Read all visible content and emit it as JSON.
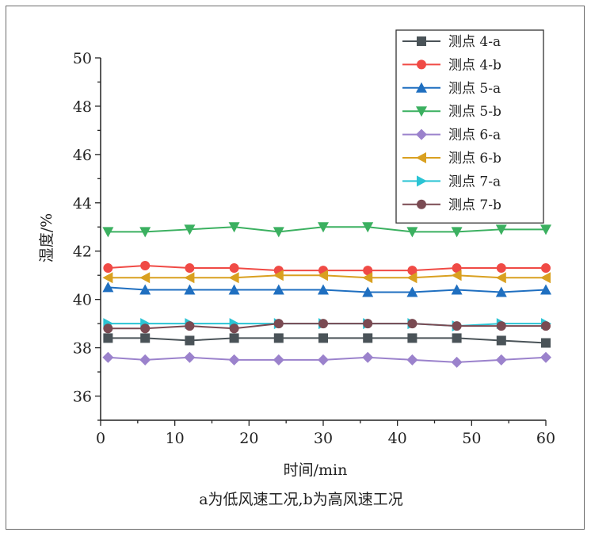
{
  "caption": "a为低风速工况,b为高风速工况",
  "colors": {
    "axis": "#222222",
    "frame": "#6b6b6b"
  },
  "chart_data": {
    "type": "line",
    "xlabel": "时间/min",
    "ylabel": "湿度/%",
    "xlim": [
      0,
      60
    ],
    "ylim": [
      35,
      50
    ],
    "xticks": [
      0,
      10,
      20,
      30,
      40,
      50,
      60
    ],
    "yticks": [
      36,
      38,
      40,
      42,
      44,
      46,
      48,
      50
    ],
    "grid": false,
    "legend_position": "top-right",
    "x": [
      1,
      6,
      12,
      18,
      24,
      30,
      36,
      42,
      48,
      54,
      60
    ],
    "series": [
      {
        "name": "测点 4-a",
        "color": "#4a5358",
        "marker": "square",
        "values": [
          38.4,
          38.4,
          38.3,
          38.4,
          38.4,
          38.4,
          38.4,
          38.4,
          38.4,
          38.3,
          38.2
        ]
      },
      {
        "name": "测点 4-b",
        "color": "#f04a45",
        "marker": "circle",
        "values": [
          41.3,
          41.4,
          41.3,
          41.3,
          41.2,
          41.2,
          41.2,
          41.2,
          41.3,
          41.3,
          41.3
        ]
      },
      {
        "name": "测点 5-a",
        "color": "#1f6fc0",
        "marker": "triangle-up",
        "values": [
          40.5,
          40.4,
          40.4,
          40.4,
          40.4,
          40.4,
          40.3,
          40.3,
          40.4,
          40.3,
          40.4
        ]
      },
      {
        "name": "测点 5-b",
        "color": "#3bb060",
        "marker": "triangle-down",
        "values": [
          42.8,
          42.8,
          42.9,
          43.0,
          42.8,
          43.0,
          43.0,
          42.8,
          42.8,
          42.9,
          42.9
        ]
      },
      {
        "name": "测点 6-a",
        "color": "#9b82cc",
        "marker": "diamond",
        "values": [
          37.6,
          37.5,
          37.6,
          37.5,
          37.5,
          37.5,
          37.6,
          37.5,
          37.4,
          37.5,
          37.6
        ]
      },
      {
        "name": "测点 6-b",
        "color": "#d9a020",
        "marker": "triangle-left",
        "values": [
          40.9,
          40.9,
          40.9,
          40.9,
          41.0,
          41.0,
          40.9,
          40.9,
          41.0,
          40.9,
          40.9
        ]
      },
      {
        "name": "测点 7-a",
        "color": "#2bc4d4",
        "marker": "triangle-right",
        "values": [
          39.0,
          39.0,
          39.0,
          39.0,
          39.0,
          39.0,
          39.0,
          39.0,
          38.9,
          39.0,
          39.0
        ]
      },
      {
        "name": "测点 7-b",
        "color": "#7a4a52",
        "marker": "circle",
        "values": [
          38.8,
          38.8,
          38.9,
          38.8,
          39.0,
          39.0,
          39.0,
          39.0,
          38.9,
          38.9,
          38.9
        ]
      }
    ]
  }
}
